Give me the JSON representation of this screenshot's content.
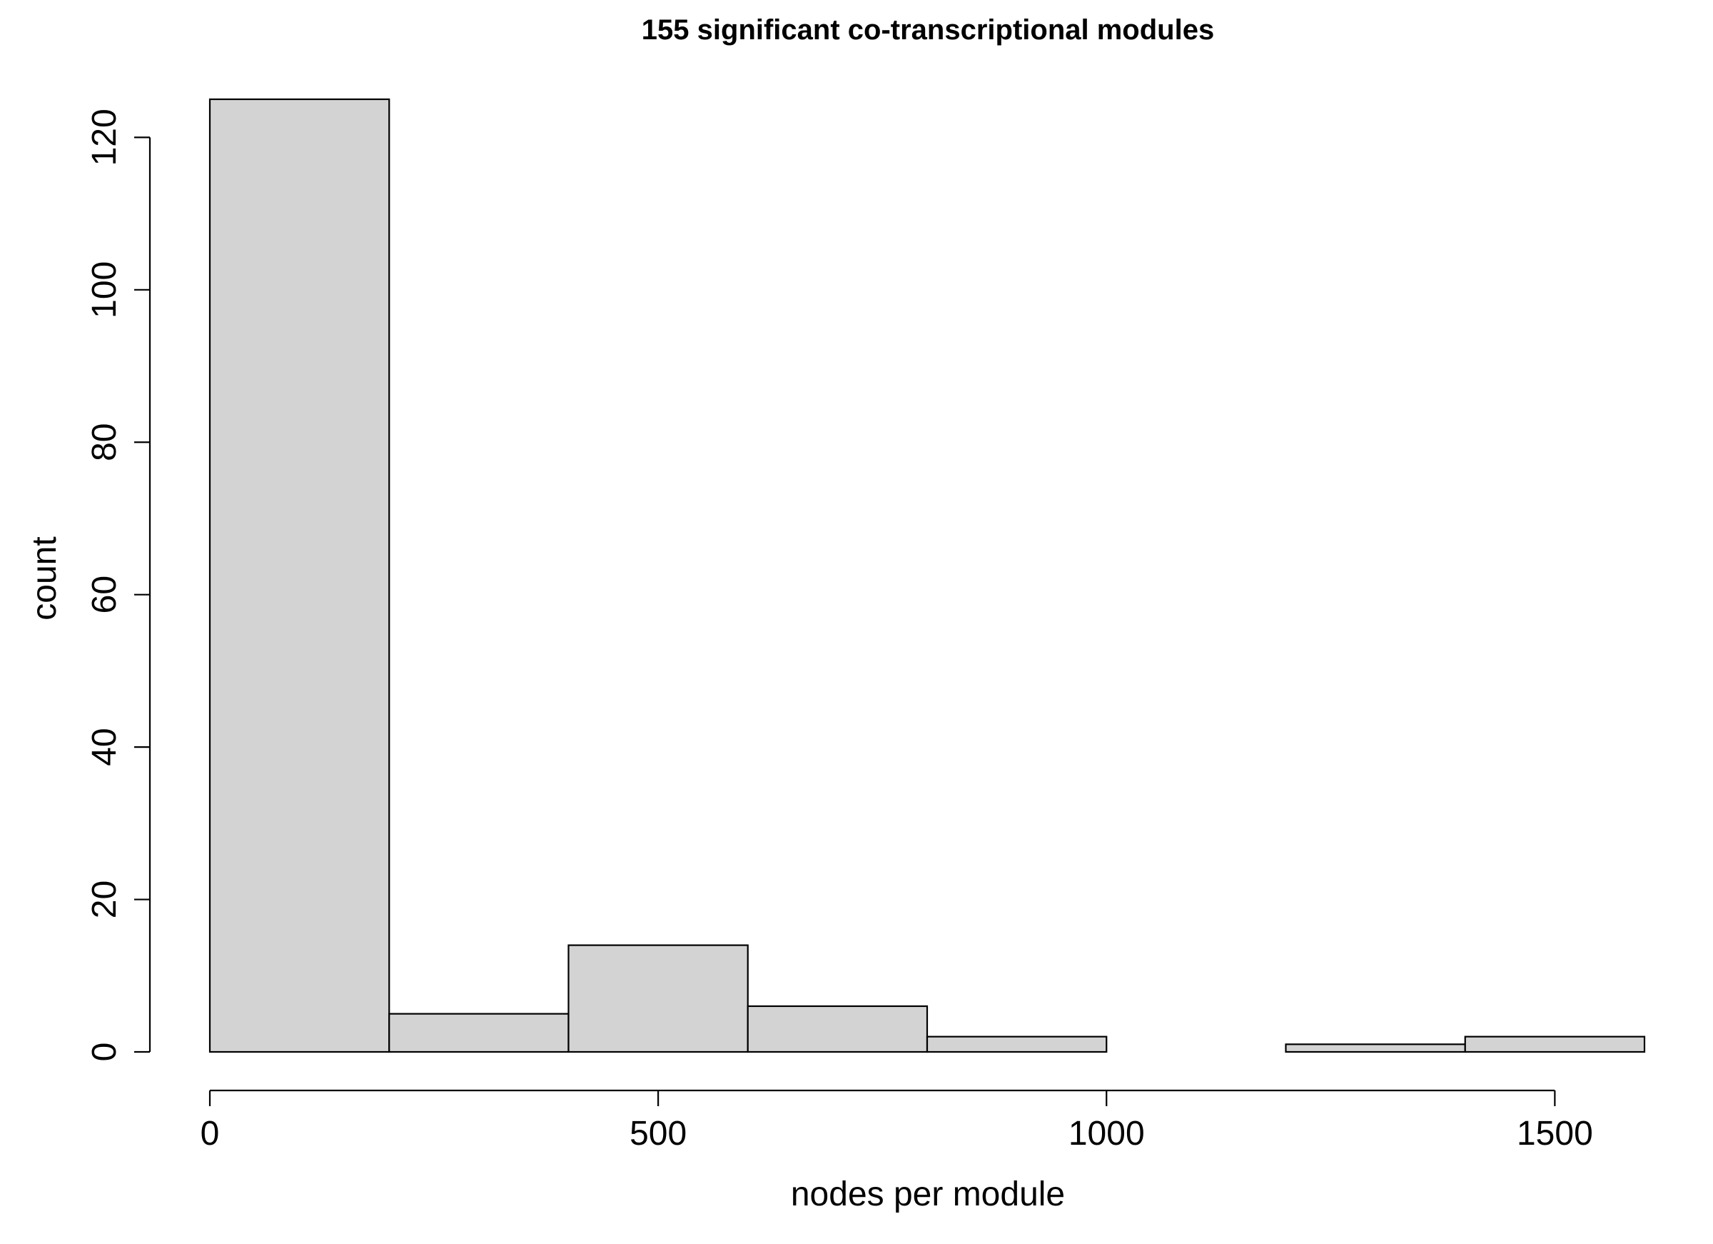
{
  "chart_data": {
    "type": "bar",
    "title": "155 significant co-transcriptional modules",
    "xlabel": "nodes per module",
    "ylabel": "count",
    "bins": [
      {
        "from": 0,
        "to": 200,
        "count": 125
      },
      {
        "from": 200,
        "to": 400,
        "count": 5
      },
      {
        "from": 400,
        "to": 600,
        "count": 14
      },
      {
        "from": 600,
        "to": 800,
        "count": 6
      },
      {
        "from": 800,
        "to": 1000,
        "count": 2
      },
      {
        "from": 1000,
        "to": 1200,
        "count": 0
      },
      {
        "from": 1200,
        "to": 1400,
        "count": 1
      },
      {
        "from": 1400,
        "to": 1600,
        "count": 2
      }
    ],
    "xlim": [
      0,
      1600
    ],
    "ylim": [
      0,
      125
    ],
    "xticks": [
      "0",
      "500",
      "1000",
      "1500"
    ],
    "yticks": [
      "0",
      "20",
      "40",
      "60",
      "80",
      "100",
      "120"
    ],
    "bar_color": "#d3d3d3",
    "grid": false
  }
}
